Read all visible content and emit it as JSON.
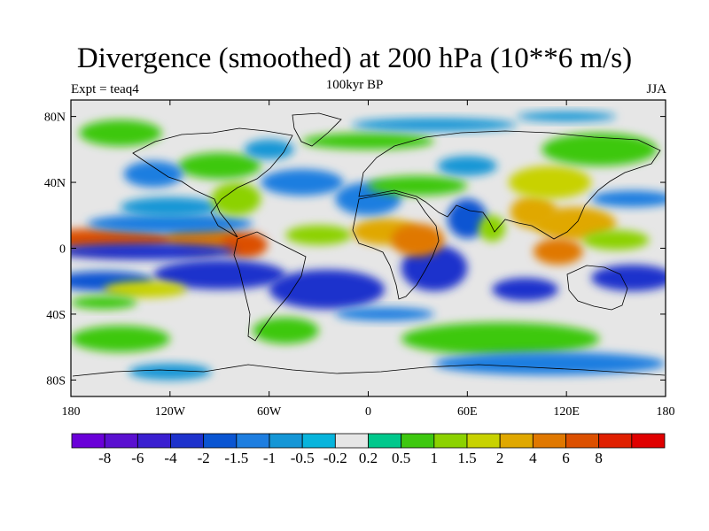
{
  "title": "Divergence (smoothed) at 200 hPa (10**6 m/s)",
  "subtitle": "100kyr BP",
  "left_label": "Expt = teaq4",
  "right_label": "JJA",
  "map": {
    "lon_range": [
      -180,
      180
    ],
    "lat_range": [
      -90,
      90
    ],
    "background_color": "#e6e6e6",
    "lat_ticks": [
      {
        "value": 80,
        "label": "80N"
      },
      {
        "value": 40,
        "label": "40N"
      },
      {
        "value": 0,
        "label": "0"
      },
      {
        "value": -40,
        "label": "40S"
      },
      {
        "value": -80,
        "label": "80S"
      }
    ],
    "lon_ticks": [
      {
        "value": -180,
        "label": "180"
      },
      {
        "value": -120,
        "label": "120W"
      },
      {
        "value": -60,
        "label": "60W"
      },
      {
        "value": 0,
        "label": "0"
      },
      {
        "value": 60,
        "label": "60E"
      },
      {
        "value": 120,
        "label": "120E"
      },
      {
        "value": 180,
        "label": "180"
      }
    ]
  },
  "colorbar": {
    "colors": [
      "#6a00d8",
      "#5a10d0",
      "#3a1fd0",
      "#1e32cc",
      "#0a55d2",
      "#1e7ee0",
      "#1596d6",
      "#08b4dc",
      "#e6e6e6",
      "#00c88c",
      "#3ec810",
      "#8cd200",
      "#c8d200",
      "#e0a800",
      "#e07800",
      "#dc5000",
      "#e02000",
      "#e00000"
    ],
    "labels": [
      "-8",
      "-6",
      "-4",
      "-2",
      "-1.5",
      "-1",
      "-0.5",
      "-0.2",
      "0.2",
      "0.5",
      "1",
      "1.5",
      "2",
      "4",
      "6",
      "8"
    ]
  },
  "field_blobs": [
    {
      "lon": -160,
      "lat": 5,
      "rx": 45,
      "ry": 7,
      "v": 7
    },
    {
      "lon": -100,
      "lat": 6,
      "rx": 22,
      "ry": 9,
      "v": 5
    },
    {
      "lon": -75,
      "lat": 2,
      "rx": 14,
      "ry": 8,
      "v": 7
    },
    {
      "lon": -135,
      "lat": -2,
      "rx": 55,
      "ry": 5,
      "v": -2.5
    },
    {
      "lon": -120,
      "lat": 15,
      "rx": 50,
      "ry": 6,
      "v": -1.2
    },
    {
      "lon": -120,
      "lat": 25,
      "rx": 30,
      "ry": 6,
      "v": -0.8
    },
    {
      "lon": -160,
      "lat": -20,
      "rx": 30,
      "ry": 6,
      "v": -1.5
    },
    {
      "lon": -90,
      "lat": -16,
      "rx": 40,
      "ry": 9,
      "v": -3
    },
    {
      "lon": -25,
      "lat": -25,
      "rx": 35,
      "ry": 12,
      "v": -3.5
    },
    {
      "lon": 40,
      "lat": -12,
      "rx": 20,
      "ry": 14,
      "v": -3.5
    },
    {
      "lon": 95,
      "lat": -25,
      "rx": 20,
      "ry": 7,
      "v": -3
    },
    {
      "lon": 160,
      "lat": -18,
      "rx": 25,
      "ry": 8,
      "v": -3
    },
    {
      "lon": -135,
      "lat": -25,
      "rx": 25,
      "ry": 5,
      "v": 1.8
    },
    {
      "lon": -160,
      "lat": -33,
      "rx": 20,
      "ry": 4,
      "v": 1
    },
    {
      "lon": -80,
      "lat": 30,
      "rx": 15,
      "ry": 10,
      "v": 1.5
    },
    {
      "lon": -90,
      "lat": 50,
      "rx": 25,
      "ry": 8,
      "v": 1
    },
    {
      "lon": -130,
      "lat": 45,
      "rx": 18,
      "ry": 8,
      "v": -1
    },
    {
      "lon": -60,
      "lat": 60,
      "rx": 15,
      "ry": 6,
      "v": -0.6
    },
    {
      "lon": -40,
      "lat": 40,
      "rx": 25,
      "ry": 8,
      "v": -1
    },
    {
      "lon": -30,
      "lat": 8,
      "rx": 20,
      "ry": 6,
      "v": 1.5
    },
    {
      "lon": 10,
      "lat": 10,
      "rx": 20,
      "ry": 8,
      "v": 3
    },
    {
      "lon": 30,
      "lat": 5,
      "rx": 16,
      "ry": 10,
      "v": 5
    },
    {
      "lon": 0,
      "lat": 30,
      "rx": 20,
      "ry": 10,
      "v": -1
    },
    {
      "lon": 30,
      "lat": 38,
      "rx": 30,
      "ry": 6,
      "v": 1
    },
    {
      "lon": 0,
      "lat": 65,
      "rx": 40,
      "ry": 5,
      "v": 0.8
    },
    {
      "lon": 60,
      "lat": 50,
      "rx": 18,
      "ry": 6,
      "v": -0.8
    },
    {
      "lon": 60,
      "lat": 18,
      "rx": 12,
      "ry": 12,
      "v": -1.5
    },
    {
      "lon": 75,
      "lat": 12,
      "rx": 8,
      "ry": 8,
      "v": 1.5
    },
    {
      "lon": 100,
      "lat": 22,
      "rx": 14,
      "ry": 10,
      "v": 4
    },
    {
      "lon": 125,
      "lat": 15,
      "rx": 25,
      "ry": 10,
      "v": 4
    },
    {
      "lon": 115,
      "lat": -2,
      "rx": 15,
      "ry": 8,
      "v": 5
    },
    {
      "lon": 150,
      "lat": 5,
      "rx": 20,
      "ry": 6,
      "v": 1.5
    },
    {
      "lon": 110,
      "lat": 40,
      "rx": 25,
      "ry": 10,
      "v": 2
    },
    {
      "lon": 140,
      "lat": 60,
      "rx": 35,
      "ry": 10,
      "v": 0.8
    },
    {
      "lon": 40,
      "lat": 75,
      "rx": 50,
      "ry": 4,
      "v": -0.8
    },
    {
      "lon": 120,
      "lat": 80,
      "rx": 30,
      "ry": 3,
      "v": -0.8
    },
    {
      "lon": 160,
      "lat": 30,
      "rx": 25,
      "ry": 5,
      "v": -1
    },
    {
      "lon": -150,
      "lat": -55,
      "rx": 30,
      "ry": 8,
      "v": 0.8
    },
    {
      "lon": -50,
      "lat": -50,
      "rx": 20,
      "ry": 8,
      "v": 0.8
    },
    {
      "lon": 10,
      "lat": -40,
      "rx": 30,
      "ry": 4,
      "v": -1
    },
    {
      "lon": 80,
      "lat": -55,
      "rx": 60,
      "ry": 10,
      "v": 0.8
    },
    {
      "lon": 110,
      "lat": -70,
      "rx": 70,
      "ry": 7,
      "v": -1
    },
    {
      "lon": -120,
      "lat": -75,
      "rx": 25,
      "ry": 5,
      "v": -0.7
    },
    {
      "lon": -150,
      "lat": 70,
      "rx": 25,
      "ry": 8,
      "v": 0.8
    }
  ]
}
